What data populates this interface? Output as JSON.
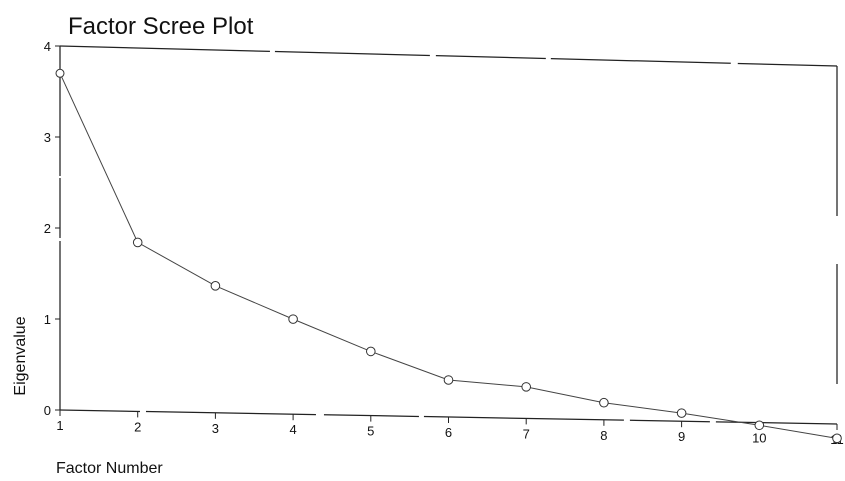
{
  "chart_data": {
    "type": "line",
    "title": "Factor Scree Plot",
    "xlabel": "Factor Number",
    "ylabel": "Eigenvalue",
    "x": [
      1,
      2,
      3,
      4,
      5,
      6,
      7,
      8,
      9,
      10,
      11
    ],
    "values": [
      3.7,
      1.86,
      1.4,
      1.05,
      0.71,
      0.41,
      0.35,
      0.19,
      0.09,
      -0.03,
      -0.16
    ],
    "x_ticks": [
      "1",
      "2",
      "3",
      "4",
      "5",
      "6",
      "7",
      "8",
      "9",
      "10",
      "11"
    ],
    "y_ticks": [
      "0",
      "1",
      "2",
      "3",
      "4"
    ],
    "xlim": [
      1,
      11
    ],
    "ylim": [
      0,
      4
    ],
    "grid": false,
    "marker": "open-circle"
  },
  "style": {
    "background": "#ffffff",
    "line_color": "#444444",
    "marker_stroke": "#333333",
    "text_color": "#111111"
  }
}
